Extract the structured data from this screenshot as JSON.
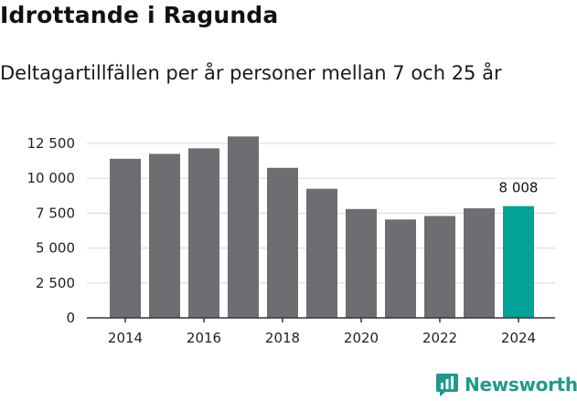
{
  "colors": {
    "bar": "#6e6d72",
    "highlight": "#00a395",
    "grid": "#d9d9d9",
    "axis": "#333333",
    "brand": "#1f9a8c"
  },
  "brand": {
    "name": "Newsworthy",
    "icon": "newsworthy-logo-icon"
  },
  "chart_data": {
    "type": "bar",
    "title": "Idrottande i Ragunda",
    "subtitle": "Deltagartillfällen per år personer mellan 7 och 25 år",
    "categories": [
      "2014",
      "2015",
      "2016",
      "2017",
      "2018",
      "2019",
      "2020",
      "2021",
      "2022",
      "2023",
      "2024"
    ],
    "values": [
      11400,
      11750,
      12150,
      13000,
      10750,
      9250,
      7800,
      7050,
      7300,
      7850,
      8008
    ],
    "highlight_index": 10,
    "data_labels": [
      {
        "index": 10,
        "text": "8 008"
      }
    ],
    "ylim": [
      0,
      12500
    ],
    "yticks": [
      0,
      2500,
      5000,
      7500,
      10000,
      12500
    ],
    "ytick_labels": [
      "0",
      "2 500",
      "5 000",
      "7 500",
      "10 000",
      "12 500"
    ],
    "xtick_labels": [
      "2014",
      "",
      "2016",
      "",
      "2018",
      "",
      "2020",
      "",
      "2022",
      "",
      "2024"
    ],
    "xlabel": "",
    "ylabel": "",
    "grid": true
  }
}
